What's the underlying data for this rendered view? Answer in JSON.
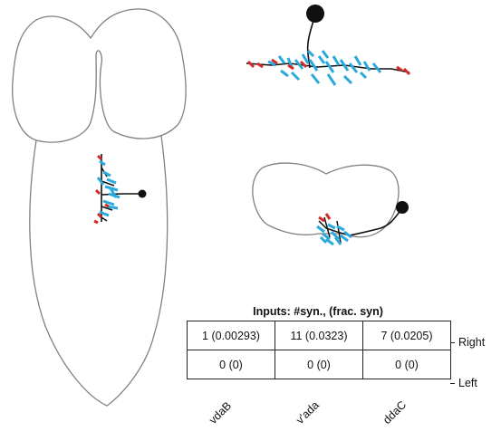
{
  "table": {
    "title": "Inputs: #syn., (frac. syn)",
    "columns": [
      "vdaB",
      "v'ada",
      "ddaC"
    ],
    "rows": [
      {
        "label": "Right",
        "cells": [
          "1 (0.00293)",
          "11 (0.0323)",
          "7 (0.0205)"
        ]
      },
      {
        "label": "Left",
        "cells": [
          "0 (0)",
          "0 (0)",
          "0 (0)"
        ]
      }
    ]
  },
  "colors": {
    "outline": "#808080",
    "neuron_skeleton": "#111111",
    "postsynaptic_sites": "#29a9dc",
    "presynaptic_sites": "#d42a2a"
  }
}
